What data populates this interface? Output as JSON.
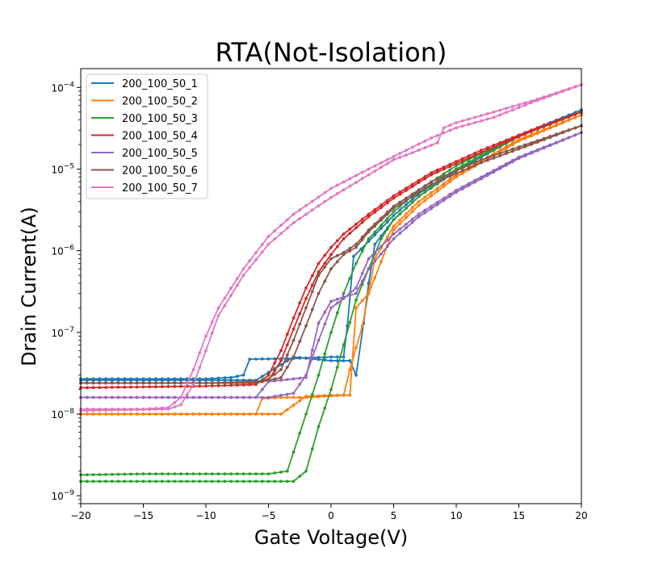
{
  "chart_data": {
    "type": "line",
    "title": "RTA(Not-Isolation)",
    "xlabel": "Gate Voltage(V)",
    "ylabel": "Drain Current(A)",
    "xlim": [
      -20,
      20
    ],
    "ylim": [
      8e-10,
      0.00017
    ],
    "yscale": "log",
    "x_ticks": [
      -20,
      -15,
      -10,
      -5,
      0,
      5,
      10,
      15,
      20
    ],
    "y_ticks": [
      {
        "value": 1e-09,
        "base": "10",
        "exp": "−9"
      },
      {
        "value": 1e-08,
        "base": "10",
        "exp": "−8"
      },
      {
        "value": 1e-07,
        "base": "10",
        "exp": "−7"
      },
      {
        "value": 1e-06,
        "base": "10",
        "exp": "−6"
      },
      {
        "value": 1e-05,
        "base": "10",
        "exp": "−5"
      },
      {
        "value": 0.0001,
        "base": "10",
        "exp": "−4"
      }
    ],
    "legend_position": "upper-left",
    "grid": false,
    "series": [
      {
        "name": "200_100_50_1",
        "color": "#1f77b4",
        "forward": [
          [
            -20,
            2.7e-08
          ],
          [
            -10,
            2.7e-08
          ],
          [
            -8,
            2.8e-08
          ],
          [
            -7,
            3e-08
          ],
          [
            -6.5,
            4.7e-08
          ],
          [
            -3,
            4.8e-08
          ],
          [
            0,
            5e-08
          ],
          [
            1,
            5e-08
          ],
          [
            1.3,
            1.2e-07
          ],
          [
            1.8,
            8.5e-07
          ],
          [
            3,
            1.3e-06
          ],
          [
            5,
            2.7e-06
          ],
          [
            7,
            5e-06
          ],
          [
            10,
            1e-05
          ],
          [
            15,
            2.6e-05
          ],
          [
            20,
            5.3e-05
          ]
        ],
        "backward": [
          [
            20,
            5.3e-05
          ],
          [
            15,
            2.5e-05
          ],
          [
            10,
            9.5e-06
          ],
          [
            7,
            4.6e-06
          ],
          [
            5,
            2.4e-06
          ],
          [
            3.5,
            1.2e-06
          ],
          [
            3,
            4e-07
          ],
          [
            2.6,
            1.3e-07
          ],
          [
            2,
            3e-08
          ],
          [
            1.5,
            4.5e-08
          ],
          [
            0,
            4.5e-08
          ],
          [
            -3,
            5e-08
          ],
          [
            -6,
            2.6e-08
          ],
          [
            -10,
            2.6e-08
          ],
          [
            -20,
            2.6e-08
          ]
        ]
      },
      {
        "name": "200_100_50_2",
        "color": "#ff7f0e",
        "forward": [
          [
            -20,
            1e-08
          ],
          [
            -10,
            1e-08
          ],
          [
            -6,
            1e-08
          ],
          [
            -5.5,
            1.55e-08
          ],
          [
            -4,
            1.6e-08
          ],
          [
            -2,
            1.6e-08
          ],
          [
            1,
            1.7e-08
          ],
          [
            1.5,
            3.5e-08
          ],
          [
            2.5,
            1.2e-07
          ],
          [
            3.5,
            8e-07
          ],
          [
            5,
            2e-06
          ],
          [
            7,
            4e-06
          ],
          [
            10,
            8.5e-06
          ],
          [
            15,
            2.3e-05
          ],
          [
            20,
            4.6e-05
          ]
        ],
        "backward": [
          [
            20,
            4.6e-05
          ],
          [
            15,
            2.2e-05
          ],
          [
            10,
            8e-06
          ],
          [
            7,
            3.6e-06
          ],
          [
            5,
            1.8e-06
          ],
          [
            3,
            3e-07
          ],
          [
            2,
            2e-07
          ],
          [
            1.5,
            1.7e-08
          ],
          [
            0,
            1.7e-08
          ],
          [
            -2,
            1.65e-08
          ],
          [
            -4,
            1e-08
          ],
          [
            -10,
            1e-08
          ],
          [
            -20,
            1e-08
          ]
        ]
      },
      {
        "name": "200_100_50_3",
        "color": "#2ca02c",
        "forward": [
          [
            -20,
            1.8e-09
          ],
          [
            -15,
            1.85e-09
          ],
          [
            -10,
            1.85e-09
          ],
          [
            -5,
            1.85e-09
          ],
          [
            -3.5,
            2e-09
          ],
          [
            -2,
            1e-08
          ],
          [
            -1,
            3e-08
          ],
          [
            0,
            1e-07
          ],
          [
            1,
            3e-07
          ],
          [
            2,
            7e-07
          ],
          [
            3,
            1.4e-06
          ],
          [
            5,
            3e-06
          ],
          [
            7,
            5.5e-06
          ],
          [
            10,
            1.1e-05
          ],
          [
            15,
            2.6e-05
          ],
          [
            20,
            5e-05
          ]
        ],
        "backward": [
          [
            20,
            5e-05
          ],
          [
            15,
            2.5e-05
          ],
          [
            10,
            1e-05
          ],
          [
            7,
            4.6e-06
          ],
          [
            5,
            2.4e-06
          ],
          [
            4,
            1.4e-06
          ],
          [
            3,
            6e-07
          ],
          [
            2,
            2.5e-07
          ],
          [
            1,
            7e-08
          ],
          [
            0,
            2e-08
          ],
          [
            -1,
            7e-09
          ],
          [
            -2,
            2e-09
          ],
          [
            -3,
            1.5e-09
          ],
          [
            -10,
            1.5e-09
          ],
          [
            -20,
            1.5e-09
          ]
        ]
      },
      {
        "name": "200_100_50_4",
        "color": "#d62728",
        "forward": [
          [
            -20,
            2.1e-08
          ],
          [
            -10,
            2.2e-08
          ],
          [
            -6,
            2.3e-08
          ],
          [
            -5,
            3e-08
          ],
          [
            -4,
            6e-08
          ],
          [
            -3,
            1.5e-07
          ],
          [
            -2,
            3.5e-07
          ],
          [
            -1,
            7e-07
          ],
          [
            0,
            1.1e-06
          ],
          [
            1,
            1.6e-06
          ],
          [
            3,
            2.8e-06
          ],
          [
            5,
            4.7e-06
          ],
          [
            8,
            9e-06
          ],
          [
            12,
            1.7e-05
          ],
          [
            16,
            3e-05
          ],
          [
            20,
            5e-05
          ]
        ],
        "backward": [
          [
            20,
            5e-05
          ],
          [
            16,
            2.9e-05
          ],
          [
            12,
            1.6e-05
          ],
          [
            8,
            8.5e-06
          ],
          [
            5,
            4.4e-06
          ],
          [
            3,
            2.6e-06
          ],
          [
            1,
            1.4e-06
          ],
          [
            0,
            9e-07
          ],
          [
            -1,
            5.5e-07
          ],
          [
            -2,
            2.6e-07
          ],
          [
            -3,
            1.1e-07
          ],
          [
            -4,
            4.5e-08
          ],
          [
            -5,
            2.6e-08
          ],
          [
            -8,
            2.4e-08
          ],
          [
            -20,
            2.4e-08
          ]
        ]
      },
      {
        "name": "200_100_50_5",
        "color": "#9467bd",
        "forward": [
          [
            -20,
            1.6e-08
          ],
          [
            -10,
            1.6e-08
          ],
          [
            -6,
            1.6e-08
          ],
          [
            -5,
            1.6e-08
          ],
          [
            -3,
            1.8e-08
          ],
          [
            -2,
            3e-08
          ],
          [
            -1,
            8e-08
          ],
          [
            0,
            2e-07
          ],
          [
            1,
            2.6e-07
          ],
          [
            2,
            3.5e-07
          ],
          [
            3,
            8e-07
          ],
          [
            5,
            1.6e-06
          ],
          [
            7,
            2.8e-06
          ],
          [
            10,
            5.5e-06
          ],
          [
            15,
            1.4e-05
          ],
          [
            20,
            2.8e-05
          ]
        ],
        "backward": [
          [
            20,
            2.8e-05
          ],
          [
            15,
            1.35e-05
          ],
          [
            10,
            5.2e-06
          ],
          [
            7,
            2.6e-06
          ],
          [
            5,
            1.4e-06
          ],
          [
            3,
            6e-07
          ],
          [
            2,
            3e-07
          ],
          [
            1,
            2.7e-07
          ],
          [
            0,
            2.4e-07
          ],
          [
            -1,
            1.3e-07
          ],
          [
            -2,
            2.8e-08
          ],
          [
            -3,
            2.7e-08
          ],
          [
            -5,
            2.5e-08
          ],
          [
            -6,
            1.6e-08
          ],
          [
            -20,
            1.6e-08
          ]
        ]
      },
      {
        "name": "200_100_50_6",
        "color": "#8c564b",
        "forward": [
          [
            -20,
            2.4e-08
          ],
          [
            -10,
            2.4e-08
          ],
          [
            -6,
            2.5e-08
          ],
          [
            -5,
            2.7e-08
          ],
          [
            -4,
            3.5e-08
          ],
          [
            -3,
            8e-08
          ],
          [
            -2,
            2e-07
          ],
          [
            -1,
            5e-07
          ],
          [
            0,
            8e-07
          ],
          [
            1,
            9.5e-07
          ],
          [
            2,
            1.2e-06
          ],
          [
            3,
            1.8e-06
          ],
          [
            5,
            3.5e-06
          ],
          [
            8,
            7e-06
          ],
          [
            12,
            1.3e-05
          ],
          [
            16,
            2.1e-05
          ],
          [
            20,
            3.4e-05
          ]
        ],
        "backward": [
          [
            20,
            3.4e-05
          ],
          [
            16,
            2e-05
          ],
          [
            12,
            1.2e-05
          ],
          [
            8,
            6.5e-06
          ],
          [
            5,
            3.3e-06
          ],
          [
            3,
            1.7e-06
          ],
          [
            2,
            1.1e-06
          ],
          [
            1,
            9e-07
          ],
          [
            0,
            6e-07
          ],
          [
            -1,
            3e-07
          ],
          [
            -2,
            1.2e-07
          ],
          [
            -3,
            5e-08
          ],
          [
            -4,
            2.8e-08
          ],
          [
            -6,
            2.4e-08
          ],
          [
            -20,
            2.4e-08
          ]
        ]
      },
      {
        "name": "200_100_50_7",
        "color": "#e377c2",
        "forward": [
          [
            -20,
            1.15e-08
          ],
          [
            -15,
            1.15e-08
          ],
          [
            -13,
            1.2e-08
          ],
          [
            -12,
            1.6e-08
          ],
          [
            -11,
            3.5e-08
          ],
          [
            -10,
            9e-08
          ],
          [
            -9,
            2e-07
          ],
          [
            -7,
            6e-07
          ],
          [
            -5,
            1.5e-06
          ],
          [
            -3,
            2.8e-06
          ],
          [
            0,
            5.8e-06
          ],
          [
            3,
            1e-05
          ],
          [
            6,
            1.7e-05
          ],
          [
            8,
            2.4e-05
          ],
          [
            10,
            3.2e-05
          ],
          [
            13,
            4.3e-05
          ],
          [
            16,
            6.5e-05
          ],
          [
            20,
            0.000108
          ]
        ],
        "backward": [
          [
            20,
            0.000108
          ],
          [
            16,
            6.8e-05
          ],
          [
            13,
            5e-05
          ],
          [
            10,
            3.7e-05
          ],
          [
            9,
            3.2e-05
          ],
          [
            8.5,
            2.1e-05
          ],
          [
            7,
            1.7e-05
          ],
          [
            5,
            1.3e-05
          ],
          [
            3,
            8.5e-06
          ],
          [
            0,
            4.5e-06
          ],
          [
            -3,
            2.2e-06
          ],
          [
            -5,
            1.2e-06
          ],
          [
            -7,
            5e-07
          ],
          [
            -9,
            1.6e-07
          ],
          [
            -10,
            6e-08
          ],
          [
            -11,
            2.3e-08
          ],
          [
            -12,
            1.3e-08
          ],
          [
            -13,
            1.15e-08
          ],
          [
            -20,
            1.1e-08
          ]
        ]
      }
    ]
  }
}
